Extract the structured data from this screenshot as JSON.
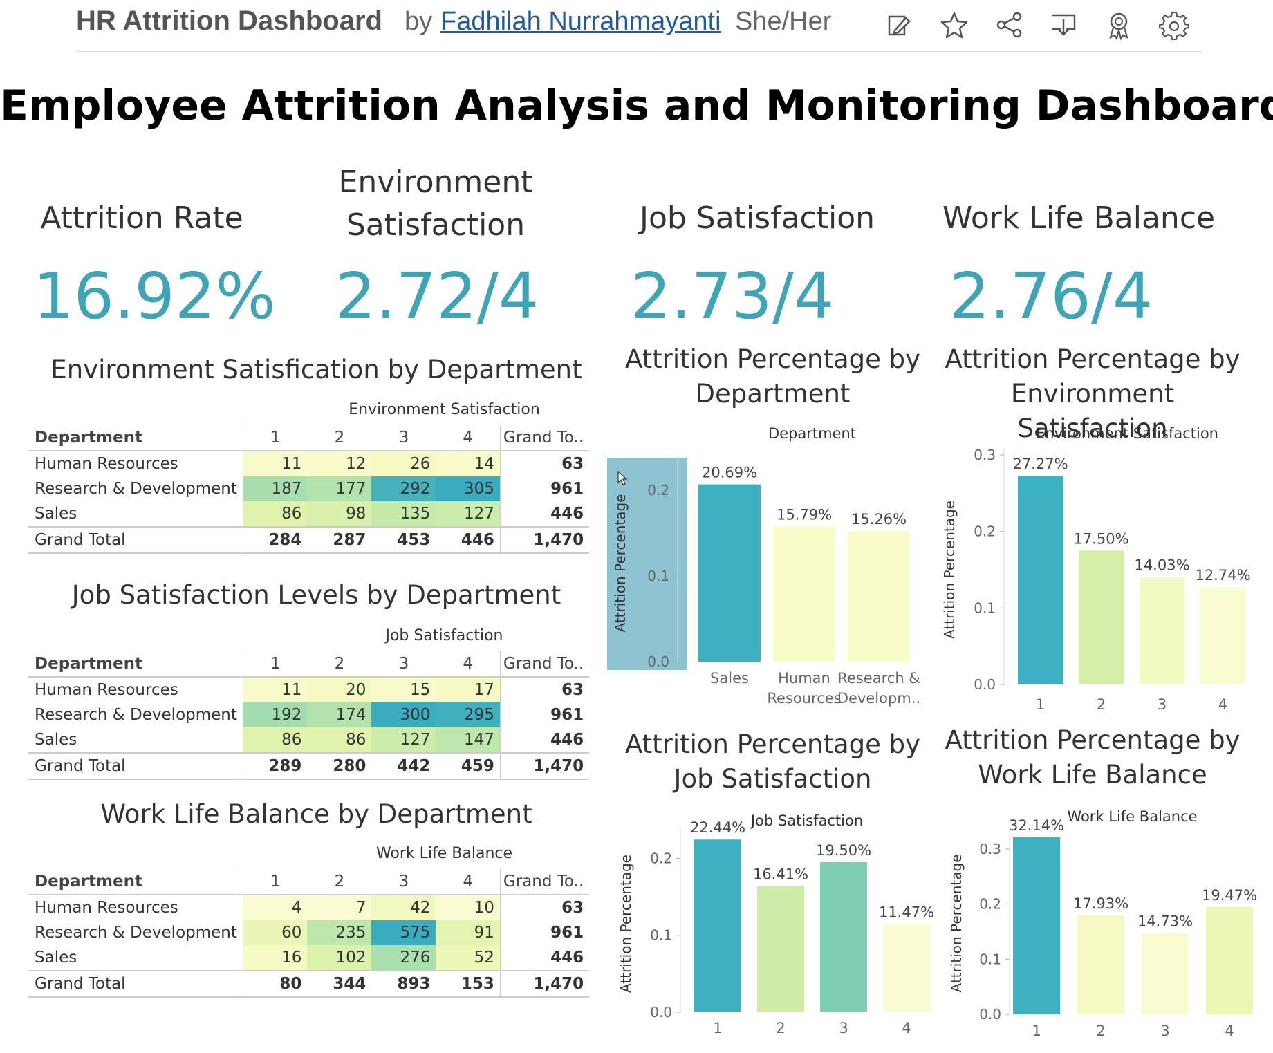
{
  "header": {
    "title": "HR Attrition Dashboard",
    "by": "by",
    "author": "Fadhilah Nurrahmayanti",
    "pronouns": "She/Her",
    "icons": [
      "edit-icon",
      "star-icon",
      "share-icon",
      "download-icon",
      "badge-icon",
      "gear-icon"
    ]
  },
  "main_title": "Employee Attrition Analysis and Monitoring Dashboard",
  "kpis": [
    {
      "label": "Attrition Rate",
      "value": "16.92%"
    },
    {
      "label": "Environment Satisfaction",
      "value": "2.72/4"
    },
    {
      "label": "Job Satisfaction",
      "value": "2.73/4"
    },
    {
      "label": "Work Life Balance",
      "value": "2.76/4"
    }
  ],
  "tables": [
    {
      "title": "Environment Satisfication by Department",
      "caption": "Environment Satisfaction",
      "columns": [
        "Department",
        "1",
        "2",
        "3",
        "4",
        "Grand To.."
      ],
      "rows": [
        {
          "dept": "Human Resources",
          "vals": [
            "11",
            "12",
            "26",
            "14"
          ],
          "total": "63",
          "colors": [
            "#f7fbc9",
            "#f7fbc9",
            "#f4fac2",
            "#f7fbc9"
          ]
        },
        {
          "dept": "Research & Development",
          "vals": [
            "187",
            "177",
            "292",
            "305"
          ],
          "total": "961",
          "colors": [
            "#a9dfae",
            "#b2e3ad",
            "#47b2be",
            "#3aacbf"
          ]
        },
        {
          "dept": "Sales",
          "vals": [
            "86",
            "98",
            "135",
            "127"
          ],
          "total": "446",
          "colors": [
            "#e0f3ad",
            "#d8f0ab",
            "#c6eaa9",
            "#cbecaa"
          ]
        }
      ],
      "grand_total": {
        "label": "Grand Total",
        "vals": [
          "284",
          "287",
          "453",
          "446"
        ],
        "total": "1,470"
      }
    },
    {
      "title": "Job Satisfaction Levels by Department",
      "caption": "Job Satisfaction",
      "columns": [
        "Department",
        "1",
        "2",
        "3",
        "4",
        "Grand To.."
      ],
      "rows": [
        {
          "dept": "Human Resources",
          "vals": [
            "11",
            "20",
            "15",
            "17"
          ],
          "total": "63",
          "colors": [
            "#f7fbc9",
            "#f4fac2",
            "#f7fbc9",
            "#f5fac4"
          ]
        },
        {
          "dept": "Research & Development",
          "vals": [
            "192",
            "174",
            "300",
            "295"
          ],
          "total": "961",
          "colors": [
            "#a2dcaf",
            "#b2e3ad",
            "#3aacbf",
            "#40afbe"
          ]
        },
        {
          "dept": "Sales",
          "vals": [
            "86",
            "86",
            "127",
            "147"
          ],
          "total": "446",
          "colors": [
            "#e0f3ad",
            "#e0f3ad",
            "#cbecaa",
            "#bde7ab"
          ]
        }
      ],
      "grand_total": {
        "label": "Grand Total",
        "vals": [
          "289",
          "280",
          "442",
          "459"
        ],
        "total": "1,470"
      }
    },
    {
      "title": "Work Life Balance by Department",
      "caption": "Work Life Balance",
      "columns": [
        "Department",
        "1",
        "2",
        "3",
        "4",
        "Grand To.."
      ],
      "rows": [
        {
          "dept": "Human Resources",
          "vals": [
            "4",
            "7",
            "42",
            "10"
          ],
          "total": "63",
          "colors": [
            "#f9fcd0",
            "#f9fcd0",
            "#f2f9c0",
            "#f9fcd0"
          ]
        },
        {
          "dept": "Research & Development",
          "vals": [
            "60",
            "235",
            "575",
            "91"
          ],
          "total": "961",
          "colors": [
            "#e9f6b6",
            "#bde7ab",
            "#3aacbf",
            "#e2f4b0"
          ]
        },
        {
          "dept": "Sales",
          "vals": [
            "16",
            "102",
            "276",
            "52"
          ],
          "total": "446",
          "colors": [
            "#f6fbc6",
            "#dcf1ac",
            "#aadfae",
            "#ecf7b8"
          ]
        }
      ],
      "grand_total": {
        "label": "Grand Total",
        "vals": [
          "80",
          "344",
          "893",
          "153"
        ],
        "total": "1,470"
      }
    }
  ],
  "chart_data": [
    {
      "type": "bar",
      "title": "Attrition Percentage by Department",
      "header": "Department",
      "ylabel": "Attrition Percentage",
      "categories": [
        "Sales",
        "Human Resources",
        "Research & Developm.."
      ],
      "values": [
        0.2069,
        0.1579,
        0.1526
      ],
      "labels": [
        "20.69%",
        "15.79%",
        "15.26%"
      ],
      "colors": [
        "#3db1c1",
        "#f7fcc8",
        "#f7fcc8"
      ],
      "ylim": [
        0,
        0.23
      ],
      "yticks": [
        "0.0",
        "0.1",
        "0.2"
      ],
      "ytick_values": [
        0,
        0.1,
        0.2
      ],
      "axis_highlight": true
    },
    {
      "type": "bar",
      "title": "Attrition Percentage by Environment Satisfaction",
      "header": "Environment Satisfaction",
      "ylabel": "Attrition Percentage",
      "categories": [
        "1",
        "2",
        "3",
        "4"
      ],
      "values": [
        0.2727,
        0.175,
        0.1403,
        0.1274
      ],
      "labels": [
        "27.27%",
        "17.50%",
        "14.03%",
        "12.74%"
      ],
      "colors": [
        "#3db1c1",
        "#d4eea8",
        "#f3f9c2",
        "#f9fcd0"
      ],
      "ylim": [
        0,
        0.3
      ],
      "yticks": [
        "0.0",
        "0.1",
        "0.2",
        "0.3"
      ],
      "ytick_values": [
        0,
        0.1,
        0.2,
        0.3
      ]
    },
    {
      "type": "bar",
      "title": "Attrition Percentage by Job Satisfaction",
      "header": "Job Satisfaction",
      "ylabel": "Attrition Percentage",
      "categories": [
        "1",
        "2",
        "3",
        "4"
      ],
      "values": [
        0.2244,
        0.1641,
        0.195,
        0.1147
      ],
      "labels": [
        "22.44%",
        "16.41%",
        "19.50%",
        "11.47%"
      ],
      "colors": [
        "#3db1c1",
        "#cfeca9",
        "#7ccdb2",
        "#f9fcd0"
      ],
      "ylim": [
        0,
        0.23
      ],
      "yticks": [
        "0.0",
        "0.1",
        "0.2"
      ],
      "ytick_values": [
        0,
        0.1,
        0.2
      ]
    },
    {
      "type": "bar",
      "title": "Attrition Percentage by Work Life Balance",
      "header": "Work Life Balance",
      "ylabel": "Attrition Percentage",
      "categories": [
        "1",
        "2",
        "3",
        "4"
      ],
      "values": [
        0.3214,
        0.1793,
        0.1473,
        0.1947
      ],
      "labels": [
        "32.14%",
        "17.93%",
        "14.73%",
        "19.47%"
      ],
      "colors": [
        "#3db1c1",
        "#f5fac4",
        "#f9fcd0",
        "#ecf7b6"
      ],
      "ylim": [
        0,
        0.33
      ],
      "yticks": [
        "0.0",
        "0.1",
        "0.2",
        "0.3"
      ],
      "ytick_values": [
        0,
        0.1,
        0.2,
        0.3
      ]
    }
  ]
}
